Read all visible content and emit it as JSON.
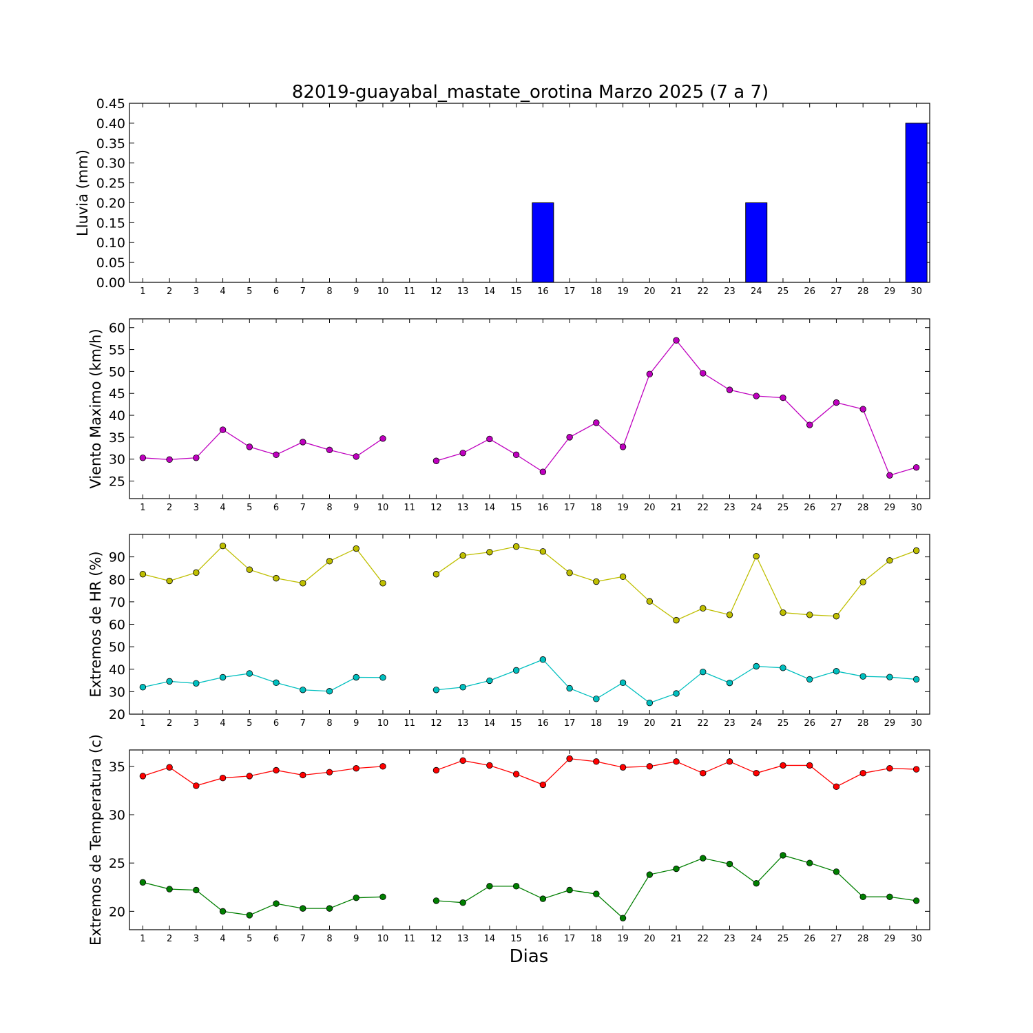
{
  "chart_data": {
    "title": "82019-guayabal_mastate_orotina Marzo 2025  (7 a 7)",
    "xlabel": "Dias",
    "days": [
      1,
      2,
      3,
      4,
      5,
      6,
      7,
      8,
      9,
      10,
      11,
      12,
      13,
      14,
      15,
      16,
      17,
      18,
      19,
      20,
      21,
      22,
      23,
      24,
      25,
      26,
      27,
      28,
      29,
      30
    ],
    "panels": [
      {
        "type": "bar",
        "ylabel": "Lluvia (mm)",
        "ylim": [
          0,
          0.45
        ],
        "yticks": [
          "0.00",
          "0.05",
          "0.10",
          "0.15",
          "0.20",
          "0.25",
          "0.30",
          "0.35",
          "0.40",
          "0.45"
        ],
        "series": [
          {
            "color": "#0000ff",
            "values": [
              0,
              0,
              0,
              0,
              0,
              0,
              0,
              0,
              0,
              0,
              0,
              0,
              0,
              0,
              0,
              0.2,
              0,
              0,
              0,
              0,
              0,
              0,
              0,
              0.2,
              0,
              0,
              0,
              0,
              0,
              0.4
            ]
          }
        ]
      },
      {
        "type": "line",
        "ylabel": "Viento Maximo (km/h)",
        "ylim": [
          21,
          62
        ],
        "yticks": [
          "25",
          "30",
          "35",
          "40",
          "45",
          "50",
          "55",
          "60"
        ],
        "series": [
          {
            "color": "#bf00bf",
            "values": [
              30.3,
              29.9,
              30.3,
              36.7,
              32.8,
              31.0,
              33.9,
              32.1,
              30.6,
              34.7,
              null,
              29.6,
              31.4,
              34.6,
              31.0,
              27.1,
              35.0,
              38.3,
              32.8,
              49.4,
              57.1,
              49.6,
              45.8,
              44.4,
              44.0,
              37.8,
              42.9,
              41.4,
              26.3,
              28.1
            ]
          }
        ]
      },
      {
        "type": "line",
        "ylabel": "Extremos de HR (%)",
        "ylim": [
          20,
          100
        ],
        "yticks": [
          "20",
          "30",
          "40",
          "50",
          "60",
          "70",
          "80",
          "90"
        ],
        "series": [
          {
            "color": "#bfbf00",
            "values": [
              82.3,
              79.3,
              83.0,
              94.9,
              84.3,
              80.5,
              78.3,
              88.1,
              93.7,
              78.3,
              null,
              82.3,
              90.6,
              92.1,
              94.6,
              92.4,
              82.9,
              79.0,
              81.2,
              70.2,
              61.8,
              67.1,
              64.2,
              90.3,
              65.2,
              64.2,
              63.6,
              78.8,
              88.4,
              92.8
            ]
          },
          {
            "color": "#00bfbf",
            "values": [
              32.0,
              34.6,
              33.7,
              36.4,
              38.1,
              34.0,
              30.8,
              30.2,
              36.4,
              36.3,
              null,
              30.8,
              32.0,
              34.9,
              39.5,
              44.3,
              31.5,
              26.8,
              34.0,
              25.0,
              29.2,
              38.8,
              33.9,
              41.3,
              40.6,
              35.5,
              39.1,
              36.8,
              36.5,
              35.5
            ]
          }
        ]
      },
      {
        "type": "line",
        "ylabel": "Extremos de Temperatura (c)",
        "ylim": [
          18.1,
          36.7
        ],
        "yticks": [
          "20",
          "25",
          "30",
          "35"
        ],
        "series": [
          {
            "color": "#ff0000",
            "values": [
              34.0,
              34.9,
              33.0,
              33.8,
              34.0,
              34.6,
              34.1,
              34.4,
              34.8,
              35.0,
              null,
              34.6,
              35.6,
              35.1,
              34.2,
              33.1,
              35.8,
              35.5,
              34.9,
              35.0,
              35.5,
              34.3,
              35.5,
              34.3,
              35.1,
              35.1,
              32.9,
              34.3,
              34.8,
              34.7
            ]
          },
          {
            "color": "#007f00",
            "values": [
              23.0,
              22.3,
              22.2,
              20.0,
              19.6,
              20.8,
              20.3,
              20.3,
              21.4,
              21.5,
              null,
              21.1,
              20.9,
              22.6,
              22.6,
              21.3,
              22.2,
              21.8,
              19.3,
              23.8,
              24.4,
              25.5,
              24.9,
              22.9,
              25.8,
              25.0,
              24.1,
              21.5,
              21.5,
              21.1
            ]
          }
        ]
      }
    ]
  }
}
